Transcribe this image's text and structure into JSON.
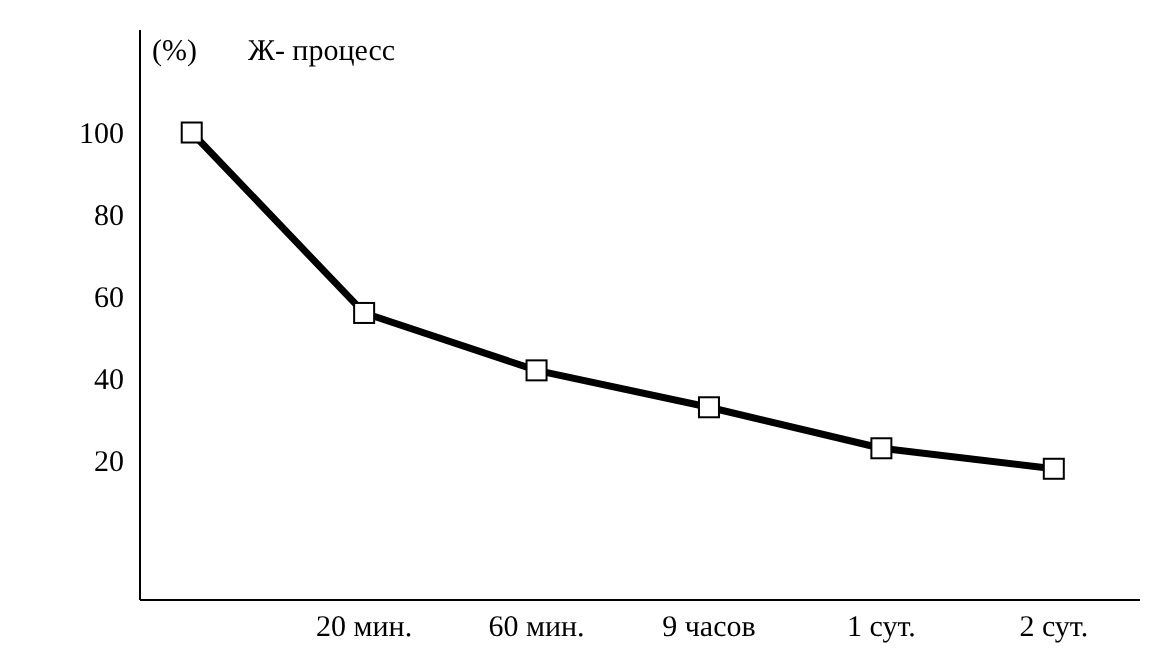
{
  "chart_data": {
    "type": "line",
    "title": "Ж- процесс",
    "ylabel": "(%)",
    "categories": [
      null,
      "20 мин.",
      "60 мин.",
      "9 часов",
      "1 сут.",
      "2 сут."
    ],
    "series": [
      {
        "color": "#000000",
        "values": [
          100,
          56,
          42,
          33,
          23,
          18
        ]
      }
    ],
    "ylim": [
      -14,
      125
    ],
    "yticks": [
      20,
      40,
      60,
      80,
      100
    ],
    "grid": false,
    "marker": "square",
    "line_style": "solid"
  }
}
